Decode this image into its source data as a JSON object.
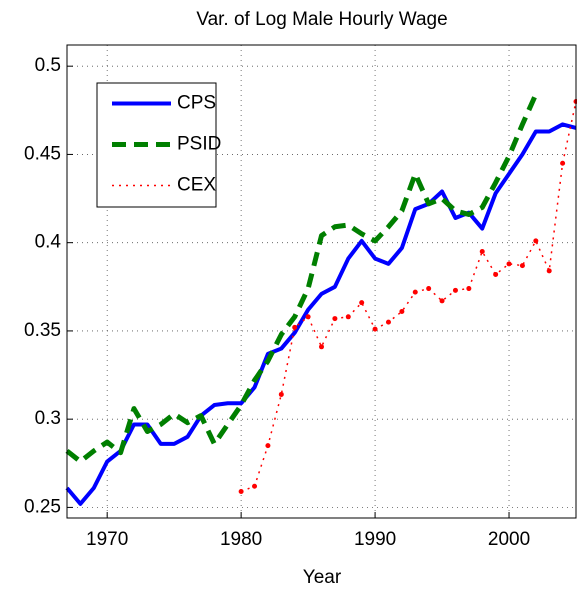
{
  "chart_data": {
    "type": "line",
    "title": "Var. of Log Male Hourly Wage",
    "x_label": "Year",
    "x": [
      1967,
      1968,
      1969,
      1970,
      1971,
      1972,
      1973,
      1974,
      1975,
      1976,
      1977,
      1978,
      1979,
      1980,
      1981,
      1982,
      1983,
      1984,
      1985,
      1986,
      1987,
      1988,
      1989,
      1990,
      1991,
      1992,
      1993,
      1994,
      1995,
      1996,
      1997,
      1998,
      1999,
      2000,
      2001,
      2002,
      2003,
      2004,
      2005
    ],
    "series": [
      {
        "name": "CPS",
        "color": "#0000ff",
        "style": "solid",
        "values": [
          0.261,
          0.252,
          0.261,
          0.276,
          0.282,
          0.297,
          0.297,
          0.286,
          0.286,
          0.29,
          0.302,
          0.308,
          0.309,
          0.309,
          0.318,
          0.337,
          0.34,
          0.349,
          0.362,
          0.371,
          0.375,
          0.391,
          0.401,
          0.391,
          0.388,
          0.397,
          0.419,
          0.422,
          0.429,
          0.414,
          0.417,
          0.408,
          0.428,
          0.439,
          0.45,
          0.463,
          0.463,
          0.467,
          0.465
        ]
      },
      {
        "name": "PSID",
        "color": "#007f00",
        "style": "dashed",
        "values": [
          0.282,
          0.276,
          0.282,
          0.287,
          0.281,
          0.306,
          0.293,
          0.297,
          0.303,
          0.298,
          0.302,
          0.286,
          0.297,
          0.308,
          0.322,
          0.333,
          0.348,
          0.358,
          0.374,
          0.404,
          0.409,
          0.41,
          0.405,
          0.401,
          0.409,
          0.418,
          0.439,
          0.422,
          0.425,
          0.418,
          0.416,
          0.42,
          0.434,
          0.449,
          0.467,
          0.484,
          null,
          null,
          null
        ]
      },
      {
        "name": "CEX",
        "color": "#ff0000",
        "style": "dotted",
        "values": [
          null,
          null,
          null,
          null,
          null,
          null,
          null,
          null,
          null,
          null,
          null,
          null,
          null,
          0.259,
          0.262,
          0.285,
          0.314,
          0.352,
          0.358,
          0.341,
          0.357,
          0.358,
          0.366,
          0.351,
          0.355,
          0.361,
          0.372,
          0.374,
          0.367,
          0.373,
          0.374,
          0.395,
          0.382,
          0.388,
          0.387,
          0.401,
          0.384,
          0.445,
          0.48
        ]
      }
    ],
    "xlim": [
      1967,
      2005
    ],
    "xticks": [
      1970,
      1980,
      1990,
      2000
    ],
    "ylim": [
      0.244,
      0.512
    ],
    "yticks": [
      0.25,
      0.3,
      0.35,
      0.4,
      0.45,
      0.5
    ],
    "grid": true,
    "legend": "upper-left"
  }
}
